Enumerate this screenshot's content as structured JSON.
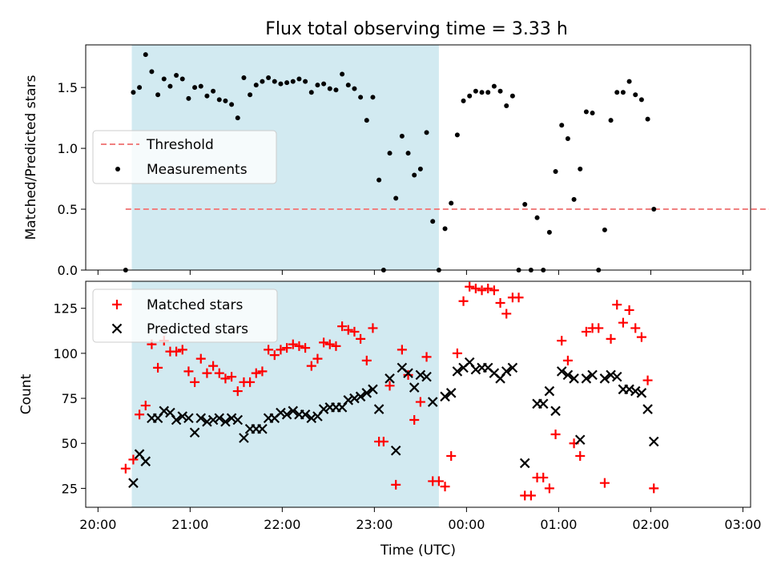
{
  "title": "Flux total observing time = 3.33 h",
  "colors": {
    "threshold": "#f08080",
    "measurement": "#000000",
    "matched": "#ff0000",
    "predicted": "#000000",
    "shade": "#add8e6"
  },
  "chart_data": [
    {
      "type": "scatter",
      "ylabel": "Matched/Predicted stars",
      "ylim": [
        0,
        1.85
      ],
      "yticks": [
        "0.0",
        "0.5",
        "1.0",
        "1.5"
      ],
      "ytick_values": [
        0,
        0.5,
        1.0,
        1.5
      ],
      "threshold": {
        "label": "Threshold",
        "value": 0.5,
        "x_range": [
          "20:18",
          "03:28"
        ]
      },
      "legend": {
        "position": "center-left",
        "entries": [
          "Threshold",
          "Measurements"
        ]
      },
      "shaded_interval": [
        "20:22",
        "23:42"
      ],
      "series": [
        {
          "name": "Measurements",
          "marker": "dot",
          "points": [
            [
              "20:18",
              0.0
            ],
            [
              "20:23",
              1.46
            ],
            [
              "20:27",
              1.5
            ],
            [
              "20:31",
              1.77
            ],
            [
              "20:35",
              1.63
            ],
            [
              "20:39",
              1.44
            ],
            [
              "20:43",
              1.57
            ],
            [
              "20:47",
              1.51
            ],
            [
              "20:51",
              1.6
            ],
            [
              "20:55",
              1.57
            ],
            [
              "20:59",
              1.41
            ],
            [
              "21:03",
              1.5
            ],
            [
              "21:07",
              1.51
            ],
            [
              "21:11",
              1.43
            ],
            [
              "21:15",
              1.47
            ],
            [
              "21:19",
              1.4
            ],
            [
              "21:23",
              1.39
            ],
            [
              "21:27",
              1.36
            ],
            [
              "21:31",
              1.25
            ],
            [
              "21:35",
              1.58
            ],
            [
              "21:39",
              1.44
            ],
            [
              "21:43",
              1.52
            ],
            [
              "21:47",
              1.55
            ],
            [
              "21:51",
              1.58
            ],
            [
              "21:55",
              1.55
            ],
            [
              "21:59",
              1.53
            ],
            [
              "22:03",
              1.54
            ],
            [
              "22:07",
              1.55
            ],
            [
              "22:11",
              1.57
            ],
            [
              "22:15",
              1.55
            ],
            [
              "22:19",
              1.46
            ],
            [
              "22:23",
              1.52
            ],
            [
              "22:27",
              1.53
            ],
            [
              "22:31",
              1.49
            ],
            [
              "22:35",
              1.48
            ],
            [
              "22:39",
              1.61
            ],
            [
              "22:43",
              1.52
            ],
            [
              "22:47",
              1.49
            ],
            [
              "22:51",
              1.42
            ],
            [
              "22:55",
              1.23
            ],
            [
              "22:59",
              1.42
            ],
            [
              "23:03",
              0.74
            ],
            [
              "23:06",
              0.0
            ],
            [
              "23:10",
              0.96
            ],
            [
              "23:14",
              0.59
            ],
            [
              "23:18",
              1.1
            ],
            [
              "23:22",
              0.96
            ],
            [
              "23:26",
              0.78
            ],
            [
              "23:30",
              0.83
            ],
            [
              "23:34",
              1.13
            ],
            [
              "23:38",
              0.4
            ],
            [
              "23:42",
              0.0
            ],
            [
              "23:46",
              0.34
            ],
            [
              "23:50",
              0.55
            ],
            [
              "23:54",
              1.11
            ],
            [
              "23:58",
              1.39
            ],
            [
              "00:02",
              1.43
            ],
            [
              "00:06",
              1.47
            ],
            [
              "00:10",
              1.46
            ],
            [
              "00:14",
              1.46
            ],
            [
              "00:18",
              1.51
            ],
            [
              "00:22",
              1.47
            ],
            [
              "00:26",
              1.35
            ],
            [
              "00:30",
              1.43
            ],
            [
              "00:34",
              0.0
            ],
            [
              "00:38",
              0.54
            ],
            [
              "00:42",
              0.0
            ],
            [
              "00:46",
              0.43
            ],
            [
              "00:50",
              0.0
            ],
            [
              "00:54",
              0.31
            ],
            [
              "00:58",
              0.81
            ],
            [
              "01:02",
              1.19
            ],
            [
              "01:06",
              1.08
            ],
            [
              "01:10",
              0.58
            ],
            [
              "01:14",
              0.83
            ],
            [
              "01:18",
              1.3
            ],
            [
              "01:22",
              1.29
            ],
            [
              "01:26",
              0.0
            ],
            [
              "01:30",
              0.33
            ],
            [
              "01:34",
              1.23
            ],
            [
              "01:38",
              1.46
            ],
            [
              "01:42",
              1.46
            ],
            [
              "01:46",
              1.55
            ],
            [
              "01:50",
              1.44
            ],
            [
              "01:54",
              1.4
            ],
            [
              "01:58",
              1.24
            ],
            [
              "02:02",
              0.5
            ]
          ]
        }
      ]
    },
    {
      "type": "scatter",
      "xlabel": "Time (UTC)",
      "ylabel": "Count",
      "ylim": [
        14.5,
        140
      ],
      "yticks": [
        "25",
        "50",
        "75",
        "100",
        "125"
      ],
      "ytick_values": [
        25,
        50,
        75,
        100,
        125
      ],
      "xticks": [
        "20:00",
        "21:00",
        "22:00",
        "23:00",
        "00:00",
        "01:00",
        "02:00",
        "03:00"
      ],
      "xtick_values": [
        0,
        60,
        120,
        180,
        240,
        300,
        360,
        420
      ],
      "legend": {
        "position": "upper-left",
        "entries": [
          "Matched stars",
          "Predicted stars"
        ]
      },
      "shaded_interval": [
        "20:22",
        "23:42"
      ],
      "series": [
        {
          "name": "Matched stars",
          "marker": "plus",
          "points": [
            [
              "20:18",
              36
            ],
            [
              "20:23",
              41
            ],
            [
              "20:27",
              66
            ],
            [
              "20:31",
              71
            ],
            [
              "20:35",
              105
            ],
            [
              "20:39",
              92
            ],
            [
              "20:43",
              107
            ],
            [
              "20:47",
              101
            ],
            [
              "20:51",
              101
            ],
            [
              "20:55",
              102
            ],
            [
              "20:59",
              90
            ],
            [
              "21:03",
              84
            ],
            [
              "21:07",
              97
            ],
            [
              "21:11",
              89
            ],
            [
              "21:15",
              93
            ],
            [
              "21:19",
              89
            ],
            [
              "21:23",
              86
            ],
            [
              "21:27",
              87
            ],
            [
              "21:31",
              79
            ],
            [
              "21:35",
              84
            ],
            [
              "21:39",
              84
            ],
            [
              "21:43",
              89
            ],
            [
              "21:47",
              90
            ],
            [
              "21:51",
              102
            ],
            [
              "21:55",
              99
            ],
            [
              "21:59",
              102
            ],
            [
              "22:03",
              103
            ],
            [
              "22:07",
              105
            ],
            [
              "22:11",
              104
            ],
            [
              "22:15",
              103
            ],
            [
              "22:19",
              93
            ],
            [
              "22:23",
              97
            ],
            [
              "22:27",
              106
            ],
            [
              "22:31",
              105
            ],
            [
              "22:35",
              104
            ],
            [
              "22:39",
              115
            ],
            [
              "22:43",
              113
            ],
            [
              "22:47",
              112
            ],
            [
              "22:51",
              108
            ],
            [
              "22:55",
              96
            ],
            [
              "22:59",
              114
            ],
            [
              "23:03",
              51
            ],
            [
              "23:06",
              51
            ],
            [
              "23:10",
              82
            ],
            [
              "23:14",
              27
            ],
            [
              "23:18",
              102
            ],
            [
              "23:22",
              88
            ],
            [
              "23:26",
              63
            ],
            [
              "23:30",
              73
            ],
            [
              "23:34",
              98
            ],
            [
              "23:38",
              29
            ],
            [
              "23:42",
              29
            ],
            [
              "23:46",
              26
            ],
            [
              "23:50",
              43
            ],
            [
              "23:54",
              100
            ],
            [
              "23:58",
              129
            ],
            [
              "00:02",
              137
            ],
            [
              "00:06",
              136
            ],
            [
              "00:10",
              135
            ],
            [
              "00:14",
              136
            ],
            [
              "00:18",
              135
            ],
            [
              "00:22",
              128
            ],
            [
              "00:26",
              122
            ],
            [
              "00:30",
              131
            ],
            [
              "00:34",
              131
            ],
            [
              "00:38",
              21
            ],
            [
              "00:42",
              21
            ],
            [
              "00:46",
              31
            ],
            [
              "00:50",
              31
            ],
            [
              "00:54",
              25
            ],
            [
              "00:58",
              55
            ],
            [
              "01:02",
              107
            ],
            [
              "01:06",
              96
            ],
            [
              "01:10",
              50
            ],
            [
              "01:14",
              43
            ],
            [
              "01:18",
              112
            ],
            [
              "01:22",
              114
            ],
            [
              "01:26",
              114
            ],
            [
              "01:30",
              28
            ],
            [
              "01:34",
              108
            ],
            [
              "01:38",
              127
            ],
            [
              "01:42",
              117
            ],
            [
              "01:46",
              124
            ],
            [
              "01:50",
              114
            ],
            [
              "01:54",
              109
            ],
            [
              "01:58",
              85
            ],
            [
              "02:02",
              25
            ]
          ]
        },
        {
          "name": "Predicted stars",
          "marker": "x",
          "points": [
            [
              "20:23",
              28
            ],
            [
              "20:27",
              44
            ],
            [
              "20:31",
              40
            ],
            [
              "20:35",
              64
            ],
            [
              "20:39",
              64
            ],
            [
              "20:43",
              68
            ],
            [
              "20:47",
              67
            ],
            [
              "20:51",
              63
            ],
            [
              "20:55",
              65
            ],
            [
              "20:59",
              64
            ],
            [
              "21:03",
              56
            ],
            [
              "21:07",
              64
            ],
            [
              "21:11",
              62
            ],
            [
              "21:15",
              63
            ],
            [
              "21:19",
              64
            ],
            [
              "21:23",
              62
            ],
            [
              "21:27",
              64
            ],
            [
              "21:31",
              63
            ],
            [
              "21:35",
              53
            ],
            [
              "21:39",
              58
            ],
            [
              "21:43",
              58
            ],
            [
              "21:47",
              58
            ],
            [
              "21:51",
              64
            ],
            [
              "21:55",
              64
            ],
            [
              "21:59",
              67
            ],
            [
              "22:03",
              66
            ],
            [
              "22:07",
              68
            ],
            [
              "22:11",
              66
            ],
            [
              "22:15",
              66
            ],
            [
              "22:19",
              64
            ],
            [
              "22:23",
              65
            ],
            [
              "22:27",
              69
            ],
            [
              "22:31",
              70
            ],
            [
              "22:35",
              70
            ],
            [
              "22:39",
              70
            ],
            [
              "22:43",
              74
            ],
            [
              "22:47",
              75
            ],
            [
              "22:51",
              76
            ],
            [
              "22:55",
              78
            ],
            [
              "22:59",
              80
            ],
            [
              "23:03",
              69
            ],
            [
              "23:10",
              86
            ],
            [
              "23:14",
              46
            ],
            [
              "23:18",
              92
            ],
            [
              "23:22",
              89
            ],
            [
              "23:26",
              81
            ],
            [
              "23:30",
              88
            ],
            [
              "23:34",
              87
            ],
            [
              "23:38",
              73
            ],
            [
              "23:46",
              76
            ],
            [
              "23:50",
              78
            ],
            [
              "23:54",
              90
            ],
            [
              "23:58",
              92
            ],
            [
              "00:02",
              95
            ],
            [
              "00:06",
              91
            ],
            [
              "00:10",
              92
            ],
            [
              "00:14",
              92
            ],
            [
              "00:18",
              89
            ],
            [
              "00:22",
              86
            ],
            [
              "00:26",
              90
            ],
            [
              "00:30",
              92
            ],
            [
              "00:38",
              39
            ],
            [
              "00:46",
              72
            ],
            [
              "00:50",
              72
            ],
            [
              "00:54",
              79
            ],
            [
              "00:58",
              68
            ],
            [
              "01:02",
              90
            ],
            [
              "01:06",
              88
            ],
            [
              "01:10",
              86
            ],
            [
              "01:14",
              52
            ],
            [
              "01:18",
              86
            ],
            [
              "01:22",
              88
            ],
            [
              "01:30",
              86
            ],
            [
              "01:34",
              88
            ],
            [
              "01:38",
              87
            ],
            [
              "01:42",
              80
            ],
            [
              "01:46",
              80
            ],
            [
              "01:50",
              79
            ],
            [
              "01:54",
              78
            ],
            [
              "01:58",
              69
            ],
            [
              "02:02",
              51
            ]
          ]
        }
      ]
    }
  ]
}
